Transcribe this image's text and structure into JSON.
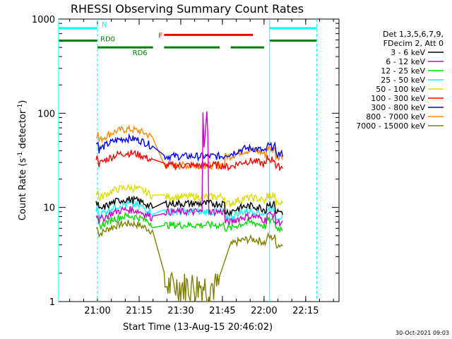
{
  "chart_data": {
    "type": "line",
    "title": "RHESSI Observing Summary Count Rates",
    "xlabel": "Start Time (13-Aug-15 20:46:02)",
    "ylabel_main": "Count Rate (s",
    "ylabel_sup1": "-1",
    "ylabel_mid": " detector",
    "ylabel_sup2": "-1",
    "ylabel_end": ")",
    "y_scale": "log",
    "ylim": [
      1,
      1000
    ],
    "xlim_minutes": [
      -14,
      87
    ],
    "x_ticks": [
      {
        "m": 0,
        "label": "21:00"
      },
      {
        "m": 15,
        "label": "21:15"
      },
      {
        "m": 30,
        "label": "21:30"
      },
      {
        "m": 45,
        "label": "21:45"
      },
      {
        "m": 60,
        "label": "22:00"
      },
      {
        "m": 75,
        "label": "22:15"
      }
    ],
    "y_ticks": [
      {
        "v": 1,
        "label": "1"
      },
      {
        "v": 10,
        "label": "10"
      },
      {
        "v": 100,
        "label": "100"
      },
      {
        "v": 1000,
        "label": "1000"
      }
    ],
    "legend_header": [
      "Det 1,3,5,6,7,9,",
      "FDecim 2, Att 0"
    ],
    "legend_placement": "right",
    "series": [
      {
        "name": "3 - 6 keV",
        "color": "#000000",
        "base_front": 9,
        "base_mid": 11,
        "base_back": 9
      },
      {
        "name": "6 - 12 keV",
        "color": "#cc00cc",
        "base_front": 7,
        "base_mid": 9,
        "base_back": 7
      },
      {
        "name": "12 - 25 keV",
        "color": "#00dd00",
        "base_front": 6,
        "base_mid": 6.5,
        "base_back": 6
      },
      {
        "name": "25 - 50 keV",
        "color": "#00ffff",
        "base_front": 8,
        "base_mid": 9,
        "base_back": 8
      },
      {
        "name": "50 - 100 keV",
        "color": "#dddd00",
        "base_front": 12,
        "base_mid": 13,
        "base_back": 11
      },
      {
        "name": "100 - 300 keV",
        "color": "#ff0000",
        "base_front": 28,
        "base_mid": 28,
        "base_back": 27
      },
      {
        "name": "300 - 800 keV",
        "color": "#0000ff",
        "base_front": 40,
        "base_mid": 35,
        "base_back": 37
      },
      {
        "name": "800 - 7000 keV",
        "color": "#ff8800",
        "base_front": 50,
        "base_mid": 28,
        "base_back": 35
      },
      {
        "name": "7000 - 15000 keV",
        "color": "#808000",
        "base_front": 5,
        "base_mid": 1.5,
        "base_back": 4
      }
    ],
    "segments": [
      {
        "label": "N",
        "color": "#00ffff",
        "y": 800,
        "ranges": [
          [
            -14,
            0
          ],
          [
            62,
            79
          ]
        ]
      },
      {
        "label": "F",
        "color": "#ee0000",
        "y": 680,
        "ranges": [
          [
            24,
            56
          ]
        ]
      },
      {
        "label": "RD0",
        "color": "#008000",
        "y": 590,
        "ranges": [
          [
            -14,
            0
          ],
          [
            62,
            79
          ]
        ]
      },
      {
        "label": "RD6",
        "color": "#008000",
        "y": 500,
        "ranges": [
          [
            0,
            20
          ],
          [
            24,
            44
          ],
          [
            48,
            60
          ]
        ]
      }
    ],
    "vertical_markers": [
      {
        "color": "#00ffff",
        "style": "solid",
        "m": -14
      },
      {
        "color": "#00ffff",
        "style": "dashed",
        "m": 0
      },
      {
        "color": "#00ffff",
        "style": "solid",
        "m": 62
      },
      {
        "color": "#00ffff",
        "style": "dashed",
        "m": 79
      }
    ]
  },
  "footer": {
    "timestamp": "30-Oct-2021 09:03"
  }
}
